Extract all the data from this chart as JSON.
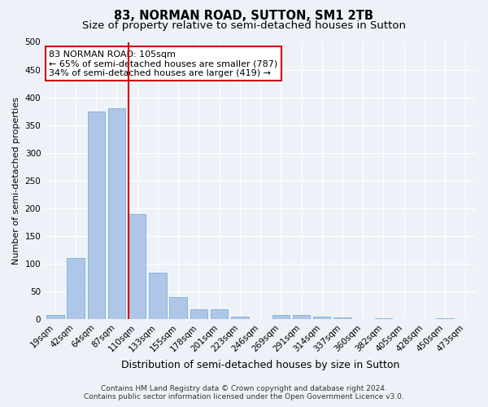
{
  "title": "83, NORMAN ROAD, SUTTON, SM1 2TB",
  "subtitle": "Size of property relative to semi-detached houses in Sutton",
  "xlabel": "Distribution of semi-detached houses by size in Sutton",
  "ylabel": "Number of semi-detached properties",
  "bar_labels": [
    "19sqm",
    "42sqm",
    "64sqm",
    "87sqm",
    "110sqm",
    "133sqm",
    "155sqm",
    "178sqm",
    "201sqm",
    "223sqm",
    "246sqm",
    "269sqm",
    "291sqm",
    "314sqm",
    "337sqm",
    "360sqm",
    "382sqm",
    "405sqm",
    "428sqm",
    "450sqm",
    "473sqm"
  ],
  "bar_values": [
    8,
    110,
    375,
    380,
    190,
    83,
    40,
    18,
    18,
    5,
    0,
    8,
    8,
    5,
    3,
    0,
    2,
    0,
    0,
    2,
    0
  ],
  "bar_color": "#aec6e8",
  "bar_edge_color": "#7aafd4",
  "vline_color": "#cc0000",
  "vline_x_index": 4,
  "annotation_title": "83 NORMAN ROAD: 105sqm",
  "annotation_line1": "← 65% of semi-detached houses are smaller (787)",
  "annotation_line2": "34% of semi-detached houses are larger (419) →",
  "annotation_box_color": "#ffffff",
  "annotation_box_edge": "#cc0000",
  "ylim": [
    0,
    500
  ],
  "yticks": [
    0,
    50,
    100,
    150,
    200,
    250,
    300,
    350,
    400,
    450,
    500
  ],
  "footer_line1": "Contains HM Land Registry data © Crown copyright and database right 2024.",
  "footer_line2": "Contains public sector information licensed under the Open Government Licence v3.0.",
  "bg_color": "#eef2f8",
  "grid_color": "#ffffff",
  "title_fontsize": 10.5,
  "subtitle_fontsize": 9.5,
  "xlabel_fontsize": 9,
  "ylabel_fontsize": 8,
  "tick_fontsize": 7.5,
  "annotation_fontsize": 8,
  "footer_fontsize": 6.5
}
